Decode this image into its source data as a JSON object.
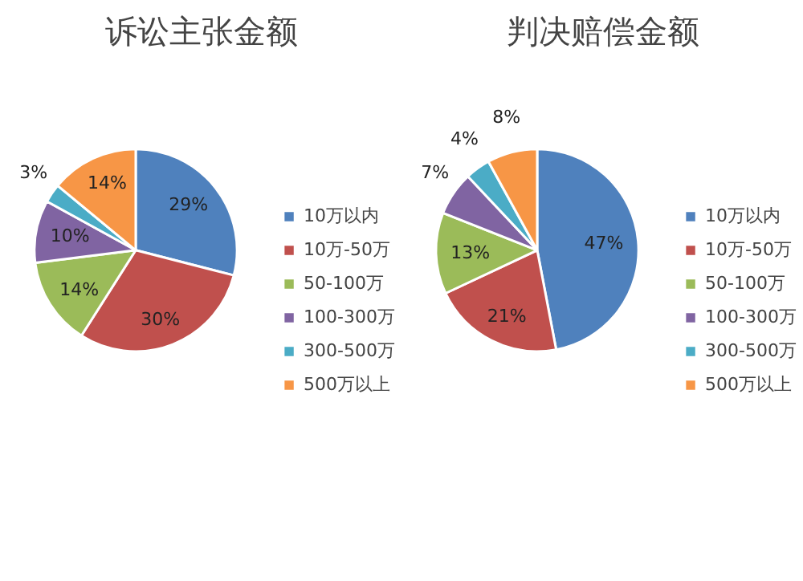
{
  "chart_data": [
    {
      "type": "pie",
      "title": "诉讼主张金额",
      "categories": [
        "10万以内",
        "10万-50万",
        "50-100万",
        "100-300万",
        "300-500万",
        "500万以上"
      ],
      "values": [
        29,
        30,
        14,
        10,
        3,
        14
      ],
      "colors": [
        "#4f81bd",
        "#c0504d",
        "#9bbb59",
        "#8064a2",
        "#4bacc6",
        "#f79646"
      ],
      "value_labels": [
        "29%",
        "30%",
        "14%",
        "10%",
        "3%",
        "14%"
      ],
      "legend": "right"
    },
    {
      "type": "pie",
      "title": "判决赔偿金额",
      "categories": [
        "10万以内",
        "10万-50万",
        "50-100万",
        "100-300万",
        "300-500万",
        "500万以上"
      ],
      "values": [
        47,
        21,
        13,
        7,
        4,
        8
      ],
      "colors": [
        "#4f81bd",
        "#c0504d",
        "#9bbb59",
        "#8064a2",
        "#4bacc6",
        "#f79646"
      ],
      "value_labels": [
        "47%",
        "21%",
        "13%",
        "7%",
        "4%",
        "8%"
      ],
      "legend": "right"
    }
  ]
}
